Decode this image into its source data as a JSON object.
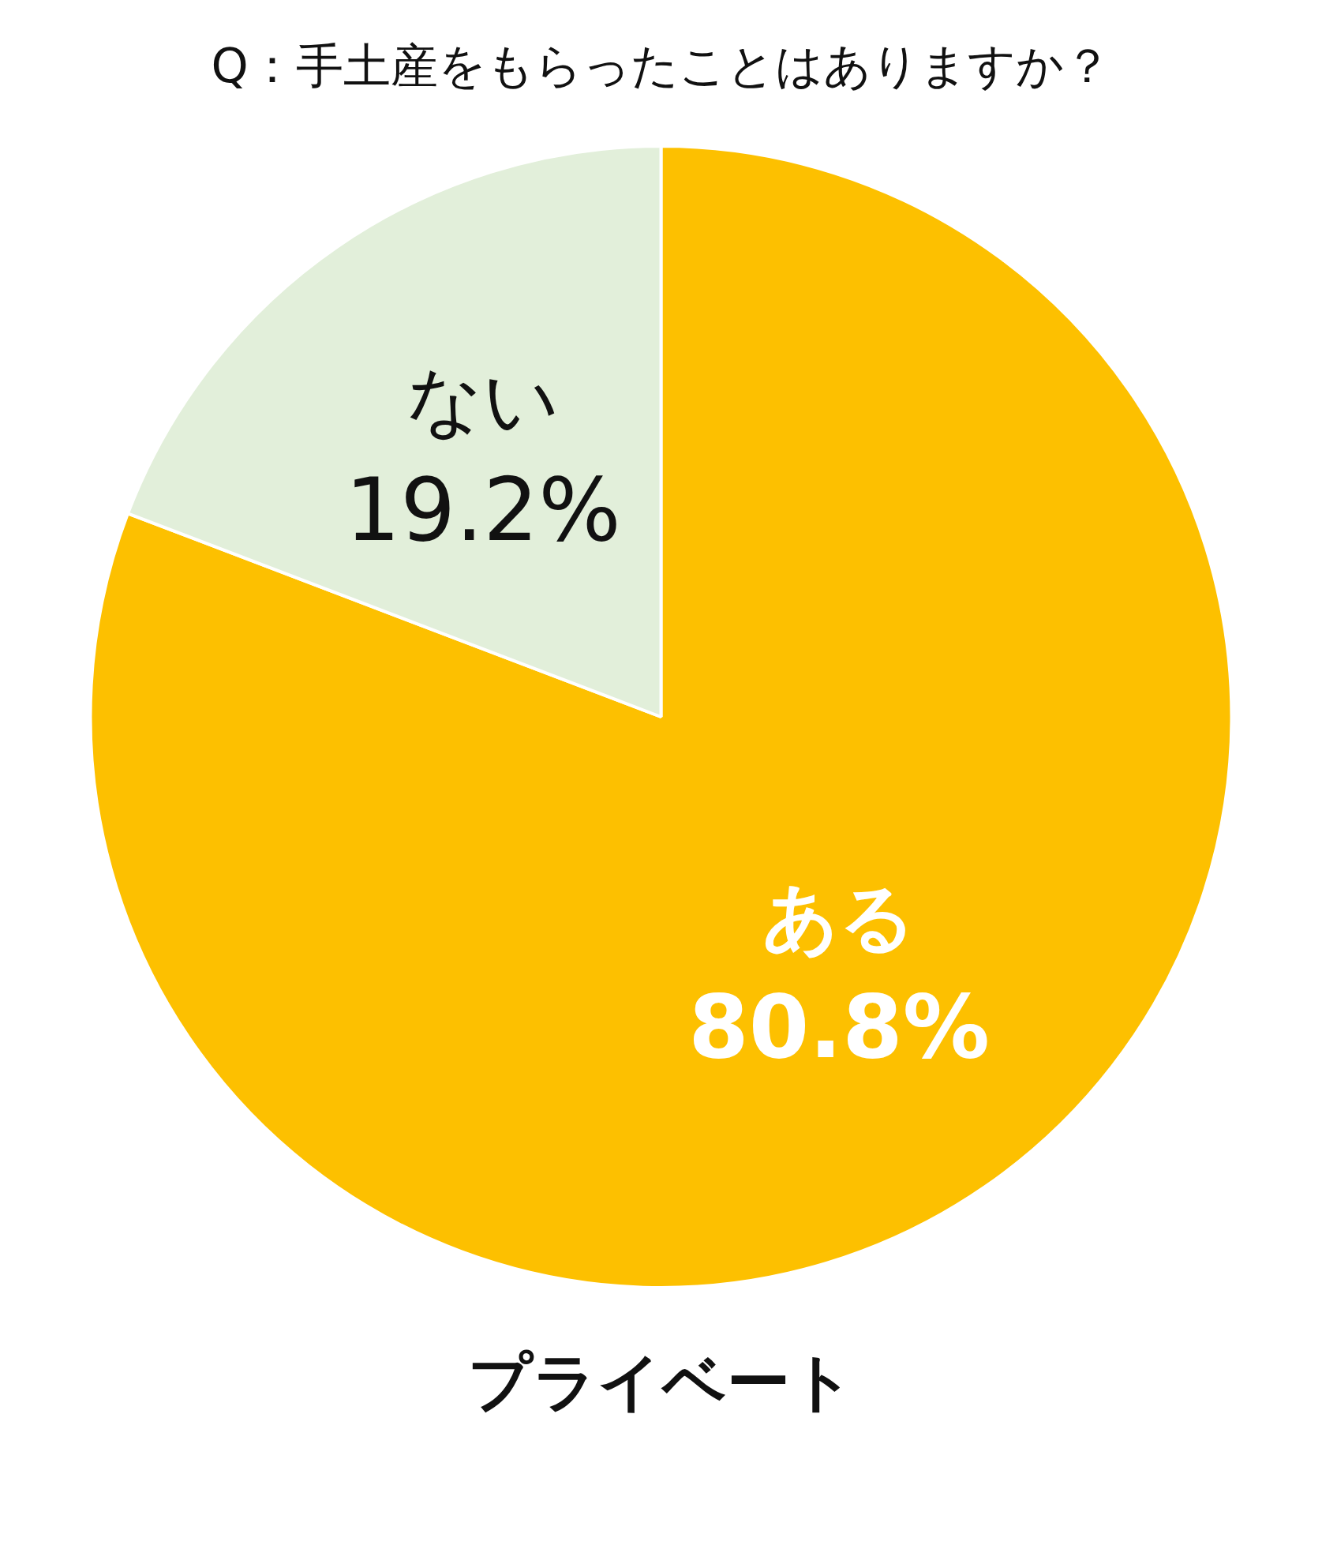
{
  "chart_data": {
    "type": "pie",
    "title": "Q：手土産をもらったことはありますか？",
    "subtitle": "プライベート",
    "categories": [
      "ある",
      "ない"
    ],
    "values": [
      80.8,
      19.2
    ],
    "colors": [
      "#fdc000",
      "#e2efda"
    ],
    "value_labels": [
      "80.8%",
      "19.2%"
    ],
    "legend": false
  }
}
